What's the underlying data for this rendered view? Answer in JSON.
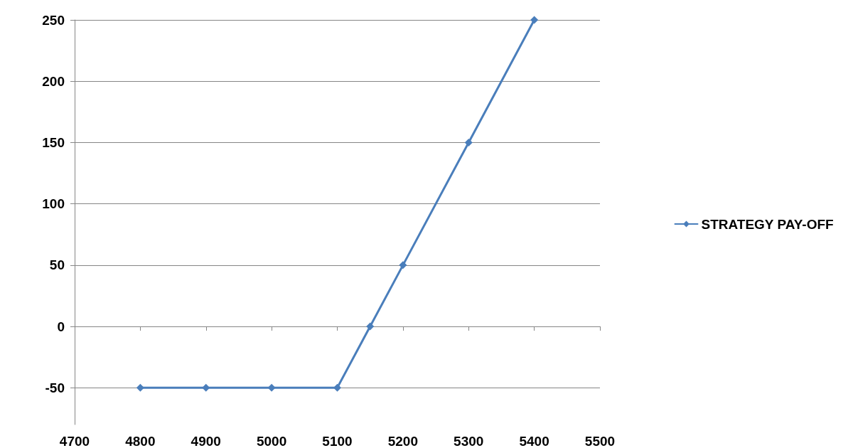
{
  "chart_data": {
    "type": "line",
    "x": [
      4800,
      4900,
      5000,
      5100,
      5150,
      5200,
      5300,
      5400
    ],
    "series": [
      {
        "name": "STRATEGY PAY-OFF",
        "color": "#4a7ebb",
        "values": [
          -50,
          -50,
          -50,
          -50,
          0,
          50,
          150,
          250
        ]
      }
    ],
    "xlim": [
      4700,
      5500
    ],
    "xticks": [
      4700,
      4800,
      4900,
      5000,
      5100,
      5200,
      5300,
      5400,
      5500
    ],
    "ylim": [
      -80,
      250
    ],
    "yticks": [
      -50,
      0,
      50,
      100,
      150,
      200,
      250
    ],
    "grid": "y",
    "legend": "right",
    "marker": "diamond",
    "line_style": "solid"
  }
}
